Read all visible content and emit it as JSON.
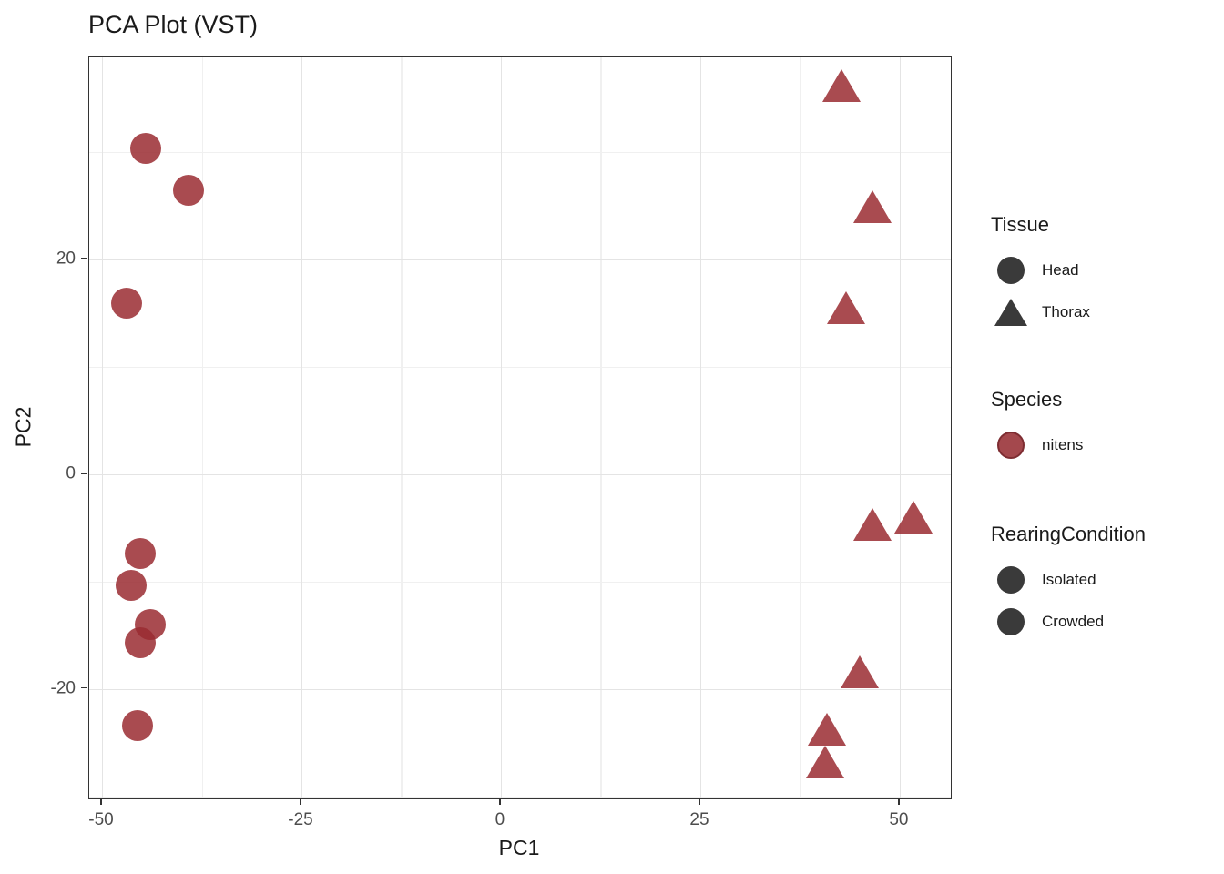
{
  "chart_data": {
    "type": "scatter",
    "title": "PCA Plot (VST)",
    "xlabel": "PC1",
    "ylabel": "PC2",
    "x_ticks": [
      -50,
      -25,
      0,
      25,
      50
    ],
    "y_ticks": [
      20,
      0,
      -20
    ],
    "x_minor_ticks": [
      -37.5,
      -12.5,
      12.5,
      37.5
    ],
    "y_minor_ticks": [
      30,
      10,
      -10,
      -30
    ],
    "x_domain": [
      -51.6,
      56.4
    ],
    "y_domain": [
      -30.2,
      38.8
    ],
    "grid": true,
    "legend_position": "right",
    "point_color": "#9A2B31",
    "point_alpha": 0.85,
    "series": [
      {
        "name": "Head",
        "shape": "circle",
        "points": [
          [
            -44.5,
            30.3
          ],
          [
            -39.2,
            26.4
          ],
          [
            -46.9,
            15.9
          ],
          [
            -45.2,
            -7.4
          ],
          [
            -46.4,
            -10.4
          ],
          [
            -44.0,
            -14.0
          ],
          [
            -45.2,
            -15.7
          ],
          [
            -45.5,
            -23.4
          ]
        ]
      },
      {
        "name": "Thorax",
        "shape": "triangle",
        "points": [
          [
            42.7,
            36.0
          ],
          [
            46.6,
            24.7
          ],
          [
            43.3,
            15.3
          ],
          [
            46.6,
            -4.9
          ],
          [
            51.7,
            -4.2
          ],
          [
            45.0,
            -18.6
          ],
          [
            40.9,
            -24.0
          ],
          [
            40.6,
            -27.0
          ]
        ]
      }
    ]
  },
  "legend": {
    "groups": [
      {
        "title": "Tissue",
        "items": [
          {
            "label": "Head",
            "shape": "circle",
            "color": "#3a3a3a"
          },
          {
            "label": "Thorax",
            "shape": "triangle",
            "color": "#3a3a3a"
          }
        ]
      },
      {
        "title": "Species",
        "items": [
          {
            "label": "nitens",
            "shape": "circle",
            "color": "#A4484D",
            "border": "#7E2D32"
          }
        ]
      },
      {
        "title": "RearingCondition",
        "items": [
          {
            "label": "Isolated",
            "shape": "circle",
            "color": "#3a3a3a"
          },
          {
            "label": "Crowded",
            "shape": "circle",
            "color": "#3a3a3a"
          }
        ]
      }
    ]
  }
}
